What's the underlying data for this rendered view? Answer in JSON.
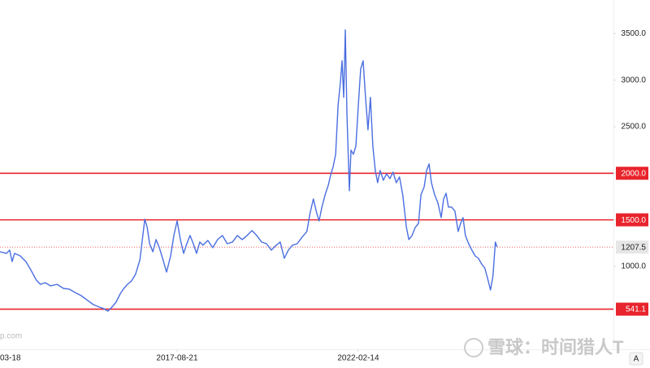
{
  "chart_data": {
    "type": "line",
    "x": [
      2013.26,
      2013.42,
      2013.5,
      2013.56,
      2013.62,
      2013.76,
      2013.9,
      2014.02,
      2014.16,
      2014.26,
      2014.38,
      2014.51,
      2014.67,
      2014.83,
      2014.97,
      2015.11,
      2015.27,
      2015.43,
      2015.57,
      2015.71,
      2015.83,
      2015.93,
      2016.03,
      2016.13,
      2016.23,
      2016.31,
      2016.41,
      2016.51,
      2016.61,
      2016.72,
      2016.78,
      2016.84,
      2016.9,
      2016.96,
      2017.04,
      2017.12,
      2017.2,
      2017.28,
      2017.38,
      2017.48,
      2017.56,
      2017.64,
      2017.72,
      2017.8,
      2017.88,
      2017.96,
      2018.04,
      2018.12,
      2018.2,
      2018.28,
      2018.4,
      2018.52,
      2018.64,
      2018.76,
      2018.88,
      2019.01,
      2019.13,
      2019.25,
      2019.37,
      2019.49,
      2019.61,
      2019.73,
      2019.85,
      2019.97,
      2020.09,
      2020.19,
      2020.29,
      2020.39,
      2020.49,
      2020.61,
      2020.73,
      2020.85,
      2020.93,
      2021.01,
      2021.09,
      2021.15,
      2021.22,
      2021.3,
      2021.38,
      2021.44,
      2021.5,
      2021.56,
      2021.62,
      2021.68,
      2021.72,
      2021.76,
      2021.8,
      2021.84,
      2021.9,
      2021.94,
      2022.0,
      2022.06,
      2022.12,
      2022.18,
      2022.24,
      2022.3,
      2022.36,
      2022.42,
      2022.48,
      2022.54,
      2022.6,
      2022.66,
      2022.74,
      2022.82,
      2022.9,
      2022.98,
      2023.06,
      2023.14,
      2023.22,
      2023.31,
      2023.37,
      2023.45,
      2023.53,
      2023.61,
      2023.67,
      2023.75,
      2023.81,
      2023.87,
      2023.93,
      2024.01,
      2024.09,
      2024.17,
      2024.23,
      2024.29,
      2024.35,
      2024.43,
      2024.51,
      2024.59,
      2024.65,
      2024.71,
      2024.77,
      2024.85,
      2024.93,
      2025.01,
      2025.09,
      2025.17,
      2025.25,
      2025.33,
      2025.39,
      2025.45,
      2025.51,
      2025.55
    ],
    "values": [
      1157,
      1140,
      1175,
      1052,
      1140,
      1113,
      1052,
      965,
      852,
      808,
      825,
      791,
      808,
      764,
      756,
      721,
      686,
      634,
      590,
      564,
      546,
      520,
      564,
      616,
      703,
      756,
      808,
      843,
      913,
      1070,
      1288,
      1506,
      1419,
      1244,
      1157,
      1288,
      1201,
      1087,
      939,
      1113,
      1332,
      1489,
      1288,
      1140,
      1244,
      1332,
      1244,
      1140,
      1262,
      1227,
      1279,
      1201,
      1288,
      1332,
      1244,
      1262,
      1332,
      1288,
      1332,
      1384,
      1332,
      1262,
      1244,
      1175,
      1227,
      1262,
      1087,
      1175,
      1227,
      1244,
      1314,
      1375,
      1576,
      1724,
      1576,
      1489,
      1637,
      1768,
      1873,
      1986,
      2073,
      2204,
      2728,
      2990,
      3208,
      2815,
      3539,
      2641,
      1812,
      2248,
      2204,
      2291,
      2728,
      3120,
      3208,
      2815,
      2466,
      2815,
      2291,
      2030,
      1899,
      2030,
      1925,
      1995,
      1942,
      2012,
      1899,
      1960,
      1768,
      1419,
      1288,
      1332,
      1419,
      1462,
      1768,
      1855,
      2030,
      2100,
      1899,
      1768,
      1681,
      1524,
      1724,
      1785,
      1637,
      1637,
      1593,
      1375,
      1462,
      1524,
      1332,
      1244,
      1175,
      1113,
      1087,
      1026,
      983,
      852,
      747,
      895,
      1262,
      1208
    ],
    "color": "#4a6ee0",
    "xlim": [
      2013.26,
      2028.43
    ],
    "xticks": [
      {
        "value": 2013.21,
        "label": "03-18"
      },
      {
        "value": 2017.64,
        "label": "2017-08-21"
      },
      {
        "value": 2022.12,
        "label": "2022-02-14"
      }
    ],
    "ylim": [
      110,
      3860
    ],
    "yticks": [
      {
        "value": 1000,
        "label": "1000.0"
      },
      {
        "value": 1500,
        "label": "1500.0"
      },
      {
        "value": 2000,
        "label": "2000.0"
      },
      {
        "value": 2500,
        "label": "2500.0"
      },
      {
        "value": 3000,
        "label": "3000.0"
      },
      {
        "value": 3500,
        "label": "3500.0"
      }
    ],
    "hlines": [
      {
        "value": 2000,
        "label": "2000.0"
      },
      {
        "value": 1500,
        "label": "1500.0"
      },
      541.1
    ],
    "hline_color": "#e8242c",
    "last_price": 1207.5,
    "watermark": "雪球：时间猎人T",
    "source_fragment": "p.com",
    "scale_button": "A"
  }
}
